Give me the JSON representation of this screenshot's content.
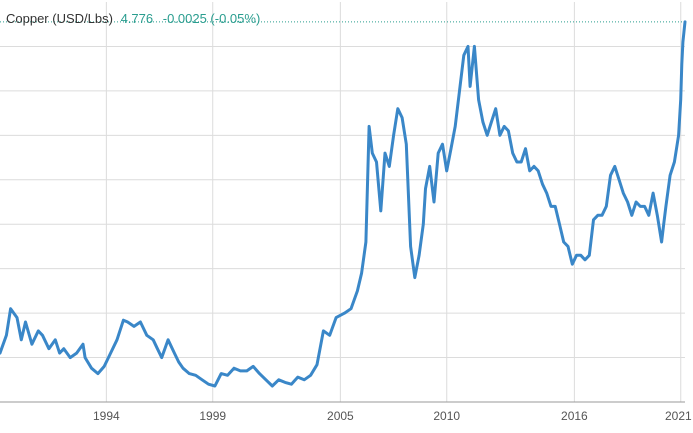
{
  "header": {
    "instrument": "Copper (USD/Lbs)",
    "price": "4.776",
    "change": "-0.0025 (-0.05%)"
  },
  "colors": {
    "line": "#3a87c8",
    "grid": "#dcdcdc",
    "axis": "#999999",
    "header_value": "#2a9d8f",
    "header_text": "#333333"
  },
  "chart_data": {
    "type": "line",
    "title": "Copper (USD/Lbs)",
    "xlabel": "",
    "ylabel": "",
    "x_tick_labels": [
      "1994",
      "1999",
      "2005",
      "2010",
      "2016",
      "2021"
    ],
    "x_tick_years": [
      1994,
      1999,
      2005,
      2010,
      2016,
      2021
    ],
    "xlim": [
      1989,
      2021.2
    ],
    "ylim": [
      0.5,
      5.0
    ],
    "y_grid_values": [
      1.0,
      1.5,
      2.0,
      2.5,
      3.0,
      3.5,
      4.0,
      4.5
    ],
    "grid": true,
    "legend": "none",
    "last_value_line": true,
    "series": [
      {
        "x": [
          1989.0,
          1989.3,
          1989.5,
          1989.8,
          1990.0,
          1990.2,
          1990.5,
          1990.8,
          1991.0,
          1991.3,
          1991.6,
          1991.8,
          1992.0,
          1992.3,
          1992.6,
          1992.9,
          1993.0,
          1993.3,
          1993.6,
          1993.9,
          1994.2,
          1994.5,
          1994.8,
          1995.0,
          1995.3,
          1995.6,
          1995.9,
          1996.2,
          1996.4,
          1996.6,
          1996.9,
          1997.2,
          1997.4,
          1997.6,
          1997.9,
          1998.2,
          1998.5,
          1998.8,
          1999.1,
          1999.4,
          1999.7,
          2000.0,
          2000.3,
          2000.6,
          2000.9,
          2001.2,
          2001.5,
          2001.8,
          2002.1,
          2002.4,
          2002.7,
          2003.0,
          2003.3,
          2003.6,
          2003.9,
          2004.2,
          2004.5,
          2004.8,
          2005.2,
          2005.5,
          2005.8,
          2006.0,
          2006.2,
          2006.35,
          2006.5,
          2006.7,
          2006.9,
          2007.1,
          2007.3,
          2007.5,
          2007.7,
          2007.9,
          2008.1,
          2008.3,
          2008.5,
          2008.7,
          2008.9,
          2009.0,
          2009.2,
          2009.4,
          2009.6,
          2009.8,
          2010.0,
          2010.2,
          2010.4,
          2010.6,
          2010.8,
          2011.0,
          2011.1,
          2011.3,
          2011.5,
          2011.7,
          2011.9,
          2012.1,
          2012.3,
          2012.5,
          2012.7,
          2012.9,
          2013.1,
          2013.3,
          2013.5,
          2013.7,
          2013.9,
          2014.1,
          2014.3,
          2014.5,
          2014.7,
          2014.9,
          2015.1,
          2015.3,
          2015.5,
          2015.7,
          2015.9,
          2016.1,
          2016.3,
          2016.5,
          2016.7,
          2016.9,
          2017.1,
          2017.3,
          2017.5,
          2017.7,
          2017.9,
          2018.1,
          2018.3,
          2018.5,
          2018.7,
          2018.9,
          2019.1,
          2019.3,
          2019.5,
          2019.7,
          2019.9,
          2020.1,
          2020.2,
          2020.3,
          2020.5,
          2020.7,
          2020.9,
          2021.0,
          2021.05,
          2021.1,
          2021.2
        ],
        "y": [
          1.05,
          1.25,
          1.55,
          1.45,
          1.2,
          1.4,
          1.15,
          1.3,
          1.25,
          1.1,
          1.2,
          1.05,
          1.1,
          1.0,
          1.05,
          1.15,
          1.0,
          0.88,
          0.82,
          0.9,
          1.05,
          1.2,
          1.42,
          1.4,
          1.35,
          1.4,
          1.25,
          1.2,
          1.1,
          1.0,
          1.2,
          1.05,
          0.95,
          0.88,
          0.82,
          0.8,
          0.75,
          0.7,
          0.68,
          0.82,
          0.8,
          0.88,
          0.85,
          0.85,
          0.9,
          0.82,
          0.75,
          0.68,
          0.75,
          0.72,
          0.7,
          0.78,
          0.75,
          0.8,
          0.92,
          1.3,
          1.25,
          1.45,
          1.5,
          1.55,
          1.75,
          1.95,
          2.3,
          3.6,
          3.3,
          3.2,
          2.65,
          3.3,
          3.15,
          3.5,
          3.8,
          3.7,
          3.4,
          2.25,
          1.9,
          2.15,
          2.5,
          2.9,
          3.15,
          2.75,
          3.3,
          3.4,
          3.1,
          3.35,
          3.6,
          4.0,
          4.4,
          4.5,
          4.05,
          4.5,
          3.9,
          3.65,
          3.5,
          3.65,
          3.8,
          3.5,
          3.6,
          3.55,
          3.3,
          3.2,
          3.2,
          3.35,
          3.1,
          3.15,
          3.1,
          2.95,
          2.85,
          2.7,
          2.7,
          2.5,
          2.3,
          2.25,
          2.05,
          2.15,
          2.15,
          2.1,
          2.15,
          2.55,
          2.6,
          2.6,
          2.7,
          3.05,
          3.15,
          3.0,
          2.85,
          2.75,
          2.6,
          2.75,
          2.7,
          2.7,
          2.6,
          2.85,
          2.6,
          2.3,
          2.5,
          2.7,
          3.05,
          3.2,
          3.5,
          3.9,
          4.3,
          4.55,
          4.776
        ]
      }
    ]
  }
}
